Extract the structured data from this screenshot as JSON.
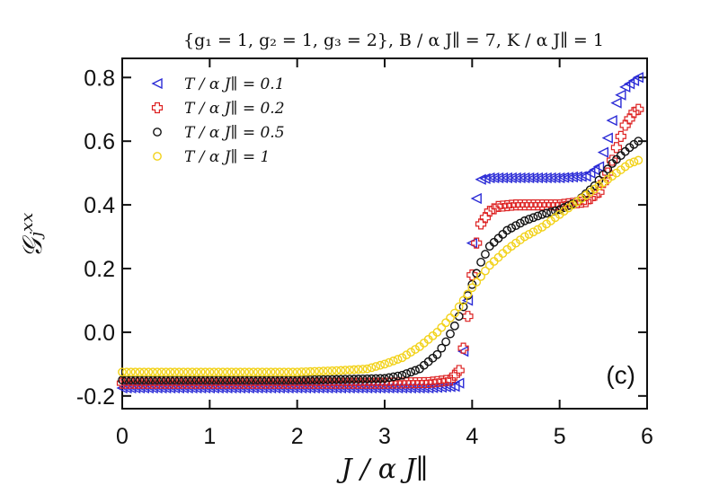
{
  "chart_data": {
    "type": "scatter",
    "title": "{g₁ = 1,  g₂ = 1,  g₃ = 2},  B / α J∥ = 7,  K / α J∥ = 1",
    "xlabel": "J / α J∥",
    "ylabel": "𝒢ⱼˣˣ",
    "panel_label": "(c)",
    "xlim": [
      0,
      6
    ],
    "ylim": [
      -0.24,
      0.86
    ],
    "xticks": [
      0,
      1,
      2,
      3,
      4,
      5,
      6
    ],
    "yticks": [
      -0.2,
      0.0,
      0.2,
      0.4,
      0.6,
      0.8
    ],
    "xtick_labels": [
      "0",
      "1",
      "2",
      "3",
      "4",
      "5",
      "6"
    ],
    "ytick_labels": [
      "-0.2",
      "0.0",
      "0.2",
      "0.4",
      "0.6",
      "0.8"
    ],
    "grid": false,
    "legend_position": "top-left",
    "series": [
      {
        "name": "T / α J∥  =  0.1",
        "marker": "triangle-left",
        "color": "#2b2bd6",
        "x": [
          0.0,
          0.5,
          1.0,
          1.5,
          2.0,
          2.5,
          3.0,
          3.5,
          3.8,
          3.85,
          3.9,
          3.95,
          4.0,
          4.05,
          4.1,
          4.2,
          4.5,
          5.0,
          5.3,
          5.45,
          5.55,
          5.65,
          5.75,
          5.85,
          5.9
        ],
        "y": [
          -0.175,
          -0.175,
          -0.175,
          -0.175,
          -0.175,
          -0.175,
          -0.175,
          -0.175,
          -0.17,
          -0.16,
          -0.06,
          0.1,
          0.28,
          0.42,
          0.48,
          0.485,
          0.485,
          0.485,
          0.49,
          0.52,
          0.61,
          0.72,
          0.77,
          0.79,
          0.8
        ]
      },
      {
        "name": "T / α J∥  =  0.2",
        "marker": "plus",
        "color": "#dd2222",
        "x": [
          0.0,
          0.5,
          1.0,
          1.5,
          2.0,
          2.5,
          3.0,
          3.5,
          3.75,
          3.85,
          3.9,
          3.95,
          4.0,
          4.05,
          4.1,
          4.2,
          4.3,
          4.5,
          5.0,
          5.3,
          5.45,
          5.55,
          5.65,
          5.75,
          5.85,
          5.9
        ],
        "y": [
          -0.16,
          -0.16,
          -0.16,
          -0.16,
          -0.16,
          -0.16,
          -0.16,
          -0.158,
          -0.15,
          -0.12,
          -0.05,
          0.05,
          0.18,
          0.28,
          0.34,
          0.38,
          0.395,
          0.4,
          0.4,
          0.41,
          0.44,
          0.5,
          0.58,
          0.65,
          0.69,
          0.7
        ]
      },
      {
        "name": "T / α J∥  =  0.5",
        "marker": "circle",
        "color": "#111111",
        "x": [
          0.0,
          0.5,
          1.0,
          1.5,
          2.0,
          2.5,
          3.0,
          3.2,
          3.4,
          3.6,
          3.7,
          3.8,
          3.9,
          4.0,
          4.1,
          4.2,
          4.4,
          4.6,
          4.8,
          5.0,
          5.2,
          5.4,
          5.6,
          5.8,
          5.9
        ],
        "y": [
          -0.15,
          -0.15,
          -0.15,
          -0.15,
          -0.15,
          -0.148,
          -0.145,
          -0.135,
          -0.115,
          -0.07,
          -0.03,
          0.02,
          0.08,
          0.15,
          0.22,
          0.27,
          0.32,
          0.35,
          0.37,
          0.385,
          0.41,
          0.46,
          0.53,
          0.58,
          0.6
        ]
      },
      {
        "name": "T / α J∥  =  1",
        "marker": "circle",
        "color": "#f2d21a",
        "x": [
          0.0,
          0.5,
          1.0,
          1.5,
          2.0,
          2.5,
          2.8,
          3.0,
          3.2,
          3.4,
          3.6,
          3.8,
          4.0,
          4.2,
          4.4,
          4.6,
          4.8,
          5.0,
          5.2,
          5.4,
          5.6,
          5.8,
          5.9
        ],
        "y": [
          -0.125,
          -0.125,
          -0.125,
          -0.125,
          -0.125,
          -0.12,
          -0.115,
          -0.1,
          -0.08,
          -0.045,
          0.0,
          0.06,
          0.14,
          0.21,
          0.26,
          0.3,
          0.33,
          0.37,
          0.41,
          0.45,
          0.49,
          0.53,
          0.54
        ]
      }
    ]
  }
}
